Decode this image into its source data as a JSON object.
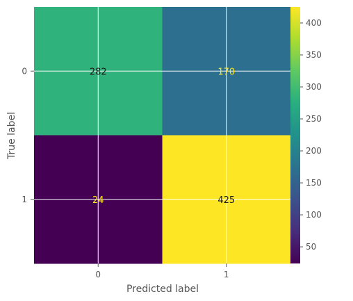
{
  "chart_data": {
    "type": "heatmap",
    "title": "",
    "xlabel": "Predicted label",
    "ylabel": "True label",
    "x_categories": [
      "0",
      "1"
    ],
    "y_categories": [
      "0",
      "1"
    ],
    "values": [
      [
        282,
        170
      ],
      [
        24,
        425
      ]
    ],
    "colormap": "viridis",
    "colorbar": {
      "range": [
        24,
        425
      ],
      "ticks": [
        50,
        100,
        150,
        200,
        250,
        300,
        350,
        400
      ]
    },
    "grid": true,
    "colors": {
      "grid": "#ffffff",
      "text_dark": "#1a1a1a",
      "text_light": "#fde725",
      "axis_text": "#555555"
    }
  }
}
